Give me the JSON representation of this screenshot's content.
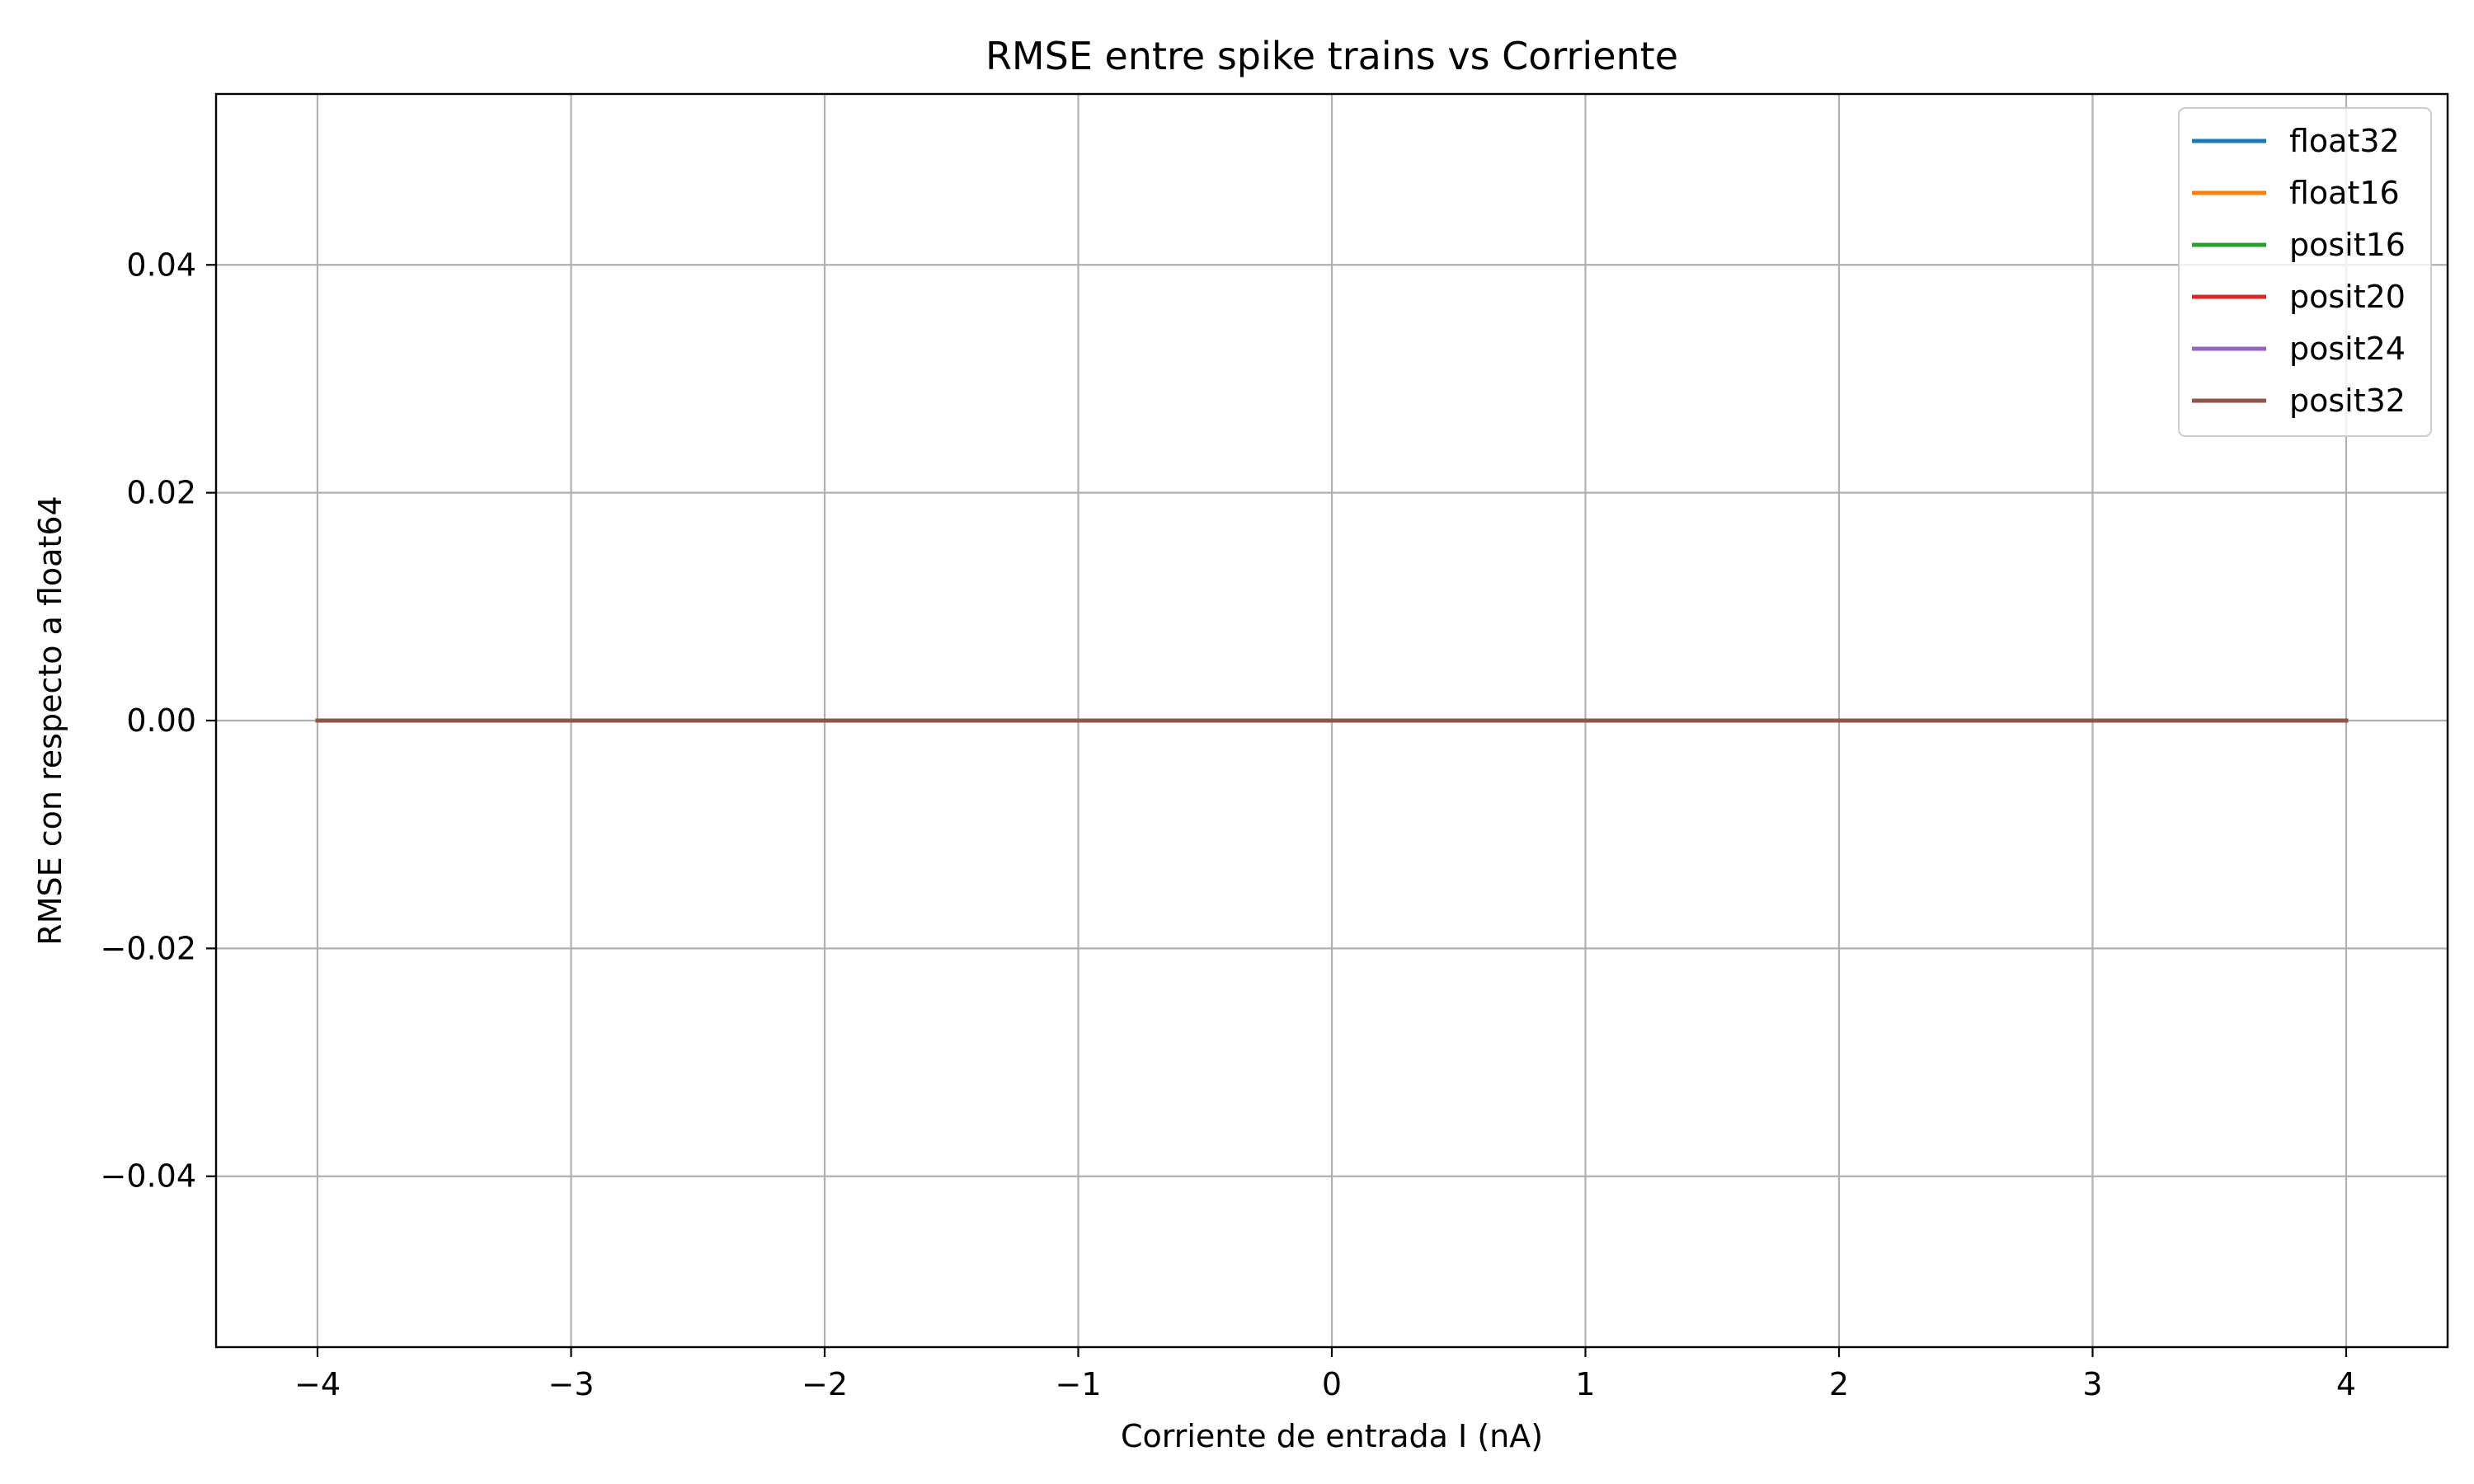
{
  "chart_data": {
    "type": "line",
    "title": "RMSE entre spike trains vs Corriente",
    "xlabel": "Corriente de entrada I (nA)",
    "ylabel": "RMSE con respecto a float64",
    "xlim": [
      -4.4,
      4.4
    ],
    "ylim": [
      -0.055,
      0.055
    ],
    "xticks": [
      -4,
      -3,
      -2,
      -1,
      0,
      1,
      2,
      3,
      4
    ],
    "xtick_labels": [
      "−4",
      "−3",
      "−2",
      "−1",
      "0",
      "1",
      "2",
      "3",
      "4"
    ],
    "yticks": [
      -0.04,
      -0.02,
      0.0,
      0.02,
      0.04
    ],
    "ytick_labels": [
      "−0.04",
      "−0.02",
      "0.00",
      "0.02",
      "0.04"
    ],
    "grid": true,
    "legend_position": "top-right",
    "x": [
      -4,
      -3,
      -2,
      -1,
      0,
      1,
      2,
      3,
      4
    ],
    "series": [
      {
        "name": "float32",
        "color": "#1f77b4",
        "values": [
          0,
          0,
          0,
          0,
          0,
          0,
          0,
          0,
          0
        ]
      },
      {
        "name": "float16",
        "color": "#ff7f0e",
        "values": [
          0,
          0,
          0,
          0,
          0,
          0,
          0,
          0,
          0
        ]
      },
      {
        "name": "posit16",
        "color": "#2ca02c",
        "values": [
          0,
          0,
          0,
          0,
          0,
          0,
          0,
          0,
          0
        ]
      },
      {
        "name": "posit20",
        "color": "#d62728",
        "values": [
          0,
          0,
          0,
          0,
          0,
          0,
          0,
          0,
          0
        ]
      },
      {
        "name": "posit24",
        "color": "#9467bd",
        "values": [
          0,
          0,
          0,
          0,
          0,
          0,
          0,
          0,
          0
        ]
      },
      {
        "name": "posit32",
        "color": "#8c564b",
        "values": [
          0,
          0,
          0,
          0,
          0,
          0,
          0,
          0,
          0
        ]
      }
    ]
  }
}
